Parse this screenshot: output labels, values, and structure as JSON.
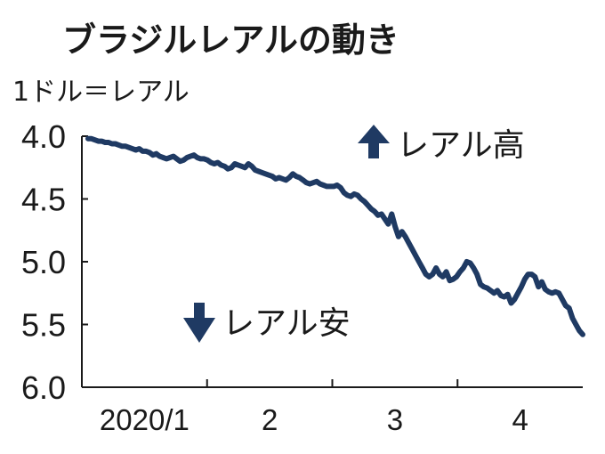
{
  "chart_data": {
    "type": "line",
    "title": "ブラジルレアルの動き",
    "unit_label": "1ドル＝レアル",
    "y_inverted": true,
    "ylim": [
      4.0,
      6.0
    ],
    "y_ticks": [
      "4.0",
      "4.5",
      "5.0",
      "5.5",
      "6.0"
    ],
    "x_ticks": [
      "2020/1",
      "2",
      "3",
      "4"
    ],
    "annotations": {
      "up": "レアル高",
      "down": "レアル安"
    },
    "grid": false,
    "line_color": "#1f3a63",
    "series": [
      {
        "values": [
          4.02,
          4.02,
          4.03,
          4.04,
          4.04,
          4.05,
          4.05,
          4.06,
          4.06,
          4.07,
          4.08,
          4.08,
          4.09,
          4.1,
          4.11,
          4.1,
          4.12,
          4.12,
          4.13,
          4.15,
          4.14,
          4.16,
          4.17,
          4.18,
          4.17,
          4.16,
          4.18,
          4.2,
          4.19,
          4.17,
          4.16,
          4.15,
          4.17,
          4.18,
          4.18,
          4.19,
          4.21,
          4.22,
          4.21,
          4.23,
          4.24,
          4.26,
          4.25,
          4.22,
          4.23,
          4.24,
          4.25,
          4.22,
          4.24,
          4.27,
          4.28,
          4.29,
          4.3,
          4.31,
          4.32,
          4.34,
          4.33,
          4.34,
          4.35,
          4.33,
          4.3,
          4.32,
          4.33,
          4.35,
          4.37,
          4.38,
          4.37,
          4.36,
          4.38,
          4.39,
          4.4,
          4.4,
          4.4,
          4.39,
          4.41,
          4.45,
          4.47,
          4.48,
          4.46,
          4.47,
          4.5,
          4.52,
          4.55,
          4.58,
          4.6,
          4.63,
          4.62,
          4.66,
          4.7,
          4.62,
          4.72,
          4.8,
          4.76,
          4.8,
          4.85,
          4.9,
          4.95,
          5.0,
          5.05,
          5.1,
          5.12,
          5.1,
          5.05,
          5.1,
          5.12,
          5.08,
          5.15,
          5.14,
          5.12,
          5.08,
          5.05,
          5.0,
          5.01,
          5.05,
          5.1,
          5.18,
          5.2,
          5.21,
          5.23,
          5.25,
          5.23,
          5.27,
          5.28,
          5.26,
          5.33,
          5.3,
          5.25,
          5.2,
          5.14,
          5.1,
          5.1,
          5.12,
          5.2,
          5.16,
          5.22,
          5.24,
          5.25,
          5.24,
          5.25,
          5.3,
          5.35,
          5.37,
          5.45,
          5.5,
          5.55,
          5.58
        ]
      }
    ]
  }
}
